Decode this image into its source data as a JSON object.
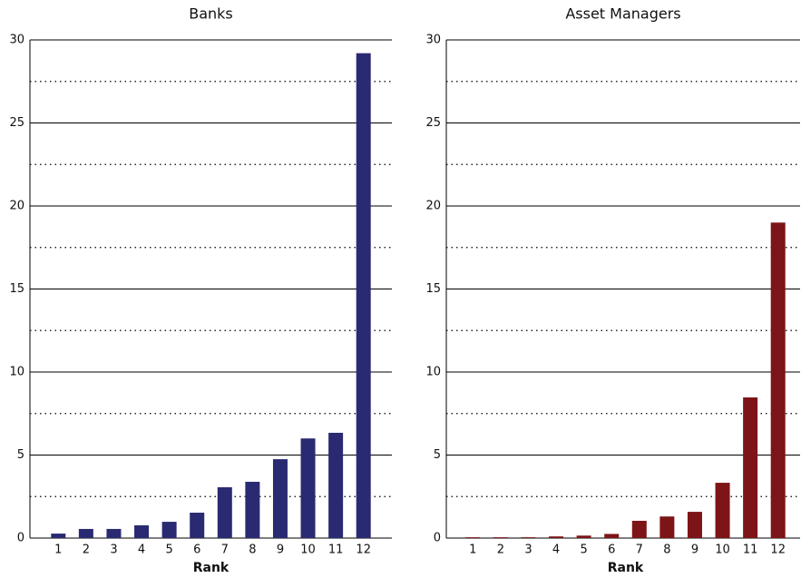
{
  "chart_data": [
    {
      "type": "bar",
      "title": "Banks",
      "x_label": "Rank",
      "categories": [
        "1",
        "2",
        "3",
        "4",
        "5",
        "6",
        "7",
        "8",
        "9",
        "10",
        "11",
        "12"
      ],
      "values": [
        0.27,
        0.55,
        0.55,
        0.77,
        0.98,
        1.53,
        3.06,
        3.39,
        4.75,
        6.0,
        6.34,
        29.2
      ],
      "color": "#2a2a72",
      "ylim": [
        0,
        30
      ],
      "yticks": [
        0,
        5,
        10,
        15,
        20,
        25,
        30
      ],
      "minor_yticks": [
        2.5,
        7.5,
        12.5,
        17.5,
        22.5,
        27.5
      ],
      "grid": true
    },
    {
      "type": "bar",
      "title": "Asset Managers",
      "x_label": "Rank",
      "categories": [
        "1",
        "2",
        "3",
        "4",
        "5",
        "6",
        "7",
        "8",
        "9",
        "10",
        "11",
        "12"
      ],
      "values": [
        0.05,
        0.05,
        0.05,
        0.1,
        0.15,
        0.25,
        1.04,
        1.3,
        1.58,
        3.33,
        8.47,
        19.0
      ],
      "color": "#7d1417",
      "ylim": [
        0,
        30
      ],
      "yticks": [
        0,
        5,
        10,
        15,
        20,
        25,
        30
      ],
      "minor_yticks": [
        2.5,
        7.5,
        12.5,
        17.5,
        22.5,
        27.5
      ],
      "grid": true
    }
  ]
}
